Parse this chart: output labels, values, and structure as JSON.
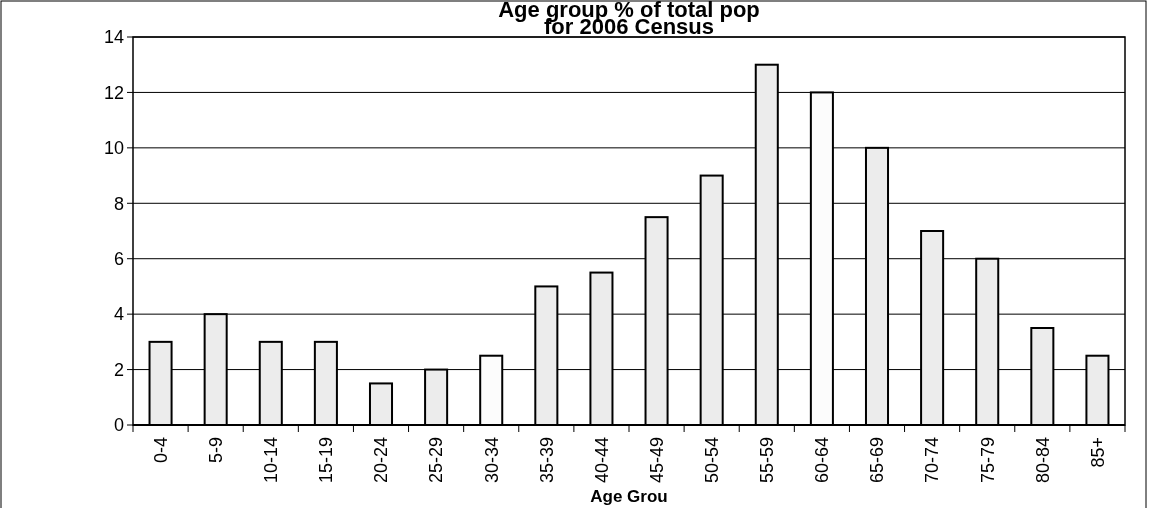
{
  "chart_data": {
    "type": "bar",
    "title": "Age group % of total pop\nfor 2006 Census",
    "xlabel": "Age Grou",
    "categories": [
      "0-4",
      "5-9",
      "10-14",
      "15-19",
      "20-24",
      "25-29",
      "30-34",
      "35-39",
      "40-44",
      "45-49",
      "50-54",
      "55-59",
      "60-64",
      "65-69",
      "70-74",
      "75-79",
      "80-84",
      "85+"
    ],
    "values": [
      3,
      4,
      3,
      3,
      1.5,
      2,
      2.5,
      5,
      5.5,
      7.5,
      9,
      13,
      12,
      10,
      7,
      6,
      3.5,
      2.5
    ],
    "colors": [
      "#ececec",
      "#ececec",
      "#ececec",
      "#ececec",
      "#ececec",
      "#ececec",
      "#fcfcfc",
      "#ececec",
      "#ececec",
      "#ececec",
      "#ececec",
      "#ececec",
      "#fcfcfc",
      "#ececec",
      "#ececec",
      "#ececec",
      "#ececec",
      "#ececec"
    ],
    "ylim": [
      0,
      14
    ],
    "yticks": [
      0,
      2,
      4,
      6,
      8,
      10,
      12,
      14
    ],
    "grid": "y"
  }
}
